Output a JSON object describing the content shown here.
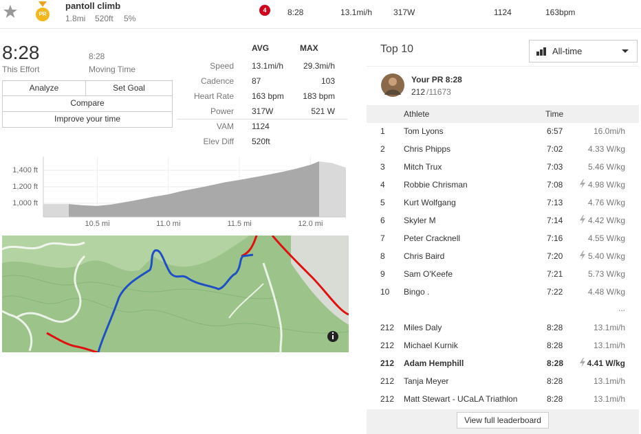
{
  "header": {
    "title": "pantoll climb",
    "distance": "1.8mi",
    "elevation": "520ft",
    "grade": "5%",
    "medal": "PR",
    "badge": "4",
    "time": "8:28",
    "speed": "13.1mi/h",
    "power": "317W",
    "vam": "1124",
    "heart_rate": "163bpm"
  },
  "effort": {
    "time": "8:28",
    "time_label": "This Effort",
    "moving_time": "8:28",
    "moving_time_label": "Moving Time"
  },
  "buttons": {
    "analyze": "Analyze",
    "set_goal": "Set Goal",
    "compare": "Compare",
    "improve": "Improve your time"
  },
  "stats": {
    "headers": [
      "AVG",
      "MAX"
    ],
    "rows": [
      [
        "Speed",
        "13.1mi/h",
        "29.3mi/h"
      ],
      [
        "Cadence",
        "87",
        "103"
      ],
      [
        "Heart Rate",
        "163 bpm",
        "183 bpm"
      ],
      [
        "Power",
        "317W",
        "521 W"
      ],
      [
        "VAM",
        "1124"
      ],
      [
        "Elev Diff",
        "520ft"
      ]
    ]
  },
  "chart_data": {
    "type": "area",
    "x": [
      10.12,
      10.3,
      10.4,
      10.5,
      10.6,
      10.75,
      10.9,
      11.0,
      11.1,
      11.25,
      11.4,
      11.5,
      11.65,
      11.8,
      11.9,
      12.0,
      12.06,
      12.15,
      12.25
    ],
    "values": [
      990,
      990,
      975,
      968,
      985,
      1030,
      1080,
      1108,
      1150,
      1200,
      1255,
      1283,
      1330,
      1380,
      1420,
      1467,
      1508,
      1490,
      1433
    ],
    "xlim": [
      10.12,
      12.25
    ],
    "ylim": [
      833,
      1567
    ],
    "xticks": [
      {
        "value": 10.5,
        "label": "10.5 mi"
      },
      {
        "value": 11.0,
        "label": "11.0 mi"
      },
      {
        "value": 11.5,
        "label": "11.5 mi"
      },
      {
        "value": 12.0,
        "label": "12.0 mi"
      }
    ],
    "yticks": [
      {
        "value": 1000,
        "label": "1,000 ft"
      },
      {
        "value": 1200,
        "label": "1,200 ft"
      },
      {
        "value": 1400,
        "label": "1,400 ft"
      }
    ],
    "highlight": [
      10.3,
      12.06
    ],
    "color": "#a9a9a9",
    "outside_color": "#d9d9d9",
    "grid": true
  },
  "leaderboard": {
    "title": "Top 10",
    "filter": "All-time",
    "pr": {
      "label": "Your PR 8:28",
      "rank": "212",
      "total": "/11673"
    },
    "columns": {
      "athlete": "Athlete",
      "time": "Time"
    },
    "top": [
      {
        "rank": "1",
        "athlete": "Tom Lyons",
        "time": "6:57",
        "metric": "16.0mi/h"
      },
      {
        "rank": "2",
        "athlete": "Chris Phipps",
        "time": "7:02",
        "metric": "4.33 W/kg"
      },
      {
        "rank": "3",
        "athlete": "Mitch Trux",
        "time": "7:03",
        "metric": "5.46 W/kg"
      },
      {
        "rank": "4",
        "athlete": "Robbie Chrisman",
        "time": "7:08",
        "metric": "4.98 W/kg",
        "estimated": true
      },
      {
        "rank": "5",
        "athlete": "Kurt Wolfgang",
        "time": "7:13",
        "metric": "4.76 W/kg"
      },
      {
        "rank": "6",
        "athlete": "Skyler M",
        "time": "7:14",
        "metric": "4.42 W/kg",
        "estimated": true
      },
      {
        "rank": "7",
        "athlete": "Peter Cracknell",
        "time": "7:16",
        "metric": "4.55 W/kg"
      },
      {
        "rank": "8",
        "athlete": "Chris Baird",
        "time": "7:20",
        "metric": "5.40 W/kg",
        "estimated": true
      },
      {
        "rank": "9",
        "athlete": "Sam O'Keefe",
        "time": "7:21",
        "metric": "5.73 W/kg"
      },
      {
        "rank": "10",
        "athlete": "Bingo .",
        "time": "7:22",
        "metric": "4.48 W/kg"
      }
    ],
    "ellipsis": "...",
    "nearby": [
      {
        "rank": "212",
        "athlete": "Miles Daly",
        "time": "8:28",
        "metric": "13.1mi/h"
      },
      {
        "rank": "212",
        "athlete": "Michael Kurnik",
        "time": "8:28",
        "metric": "13.1mi/h"
      },
      {
        "rank": "212",
        "athlete": "Adam Hemphill",
        "time": "8:28",
        "metric": "4.41 W/kg",
        "estimated": true,
        "current": true
      },
      {
        "rank": "212",
        "athlete": "Tanja Meyer",
        "time": "8:28",
        "metric": "13.1mi/h"
      },
      {
        "rank": "212",
        "athlete": "Matt Stewart - UCaLA Triathlon",
        "time": "8:28",
        "metric": "13.1mi/h"
      }
    ],
    "view_all": "View full leaderboard"
  }
}
